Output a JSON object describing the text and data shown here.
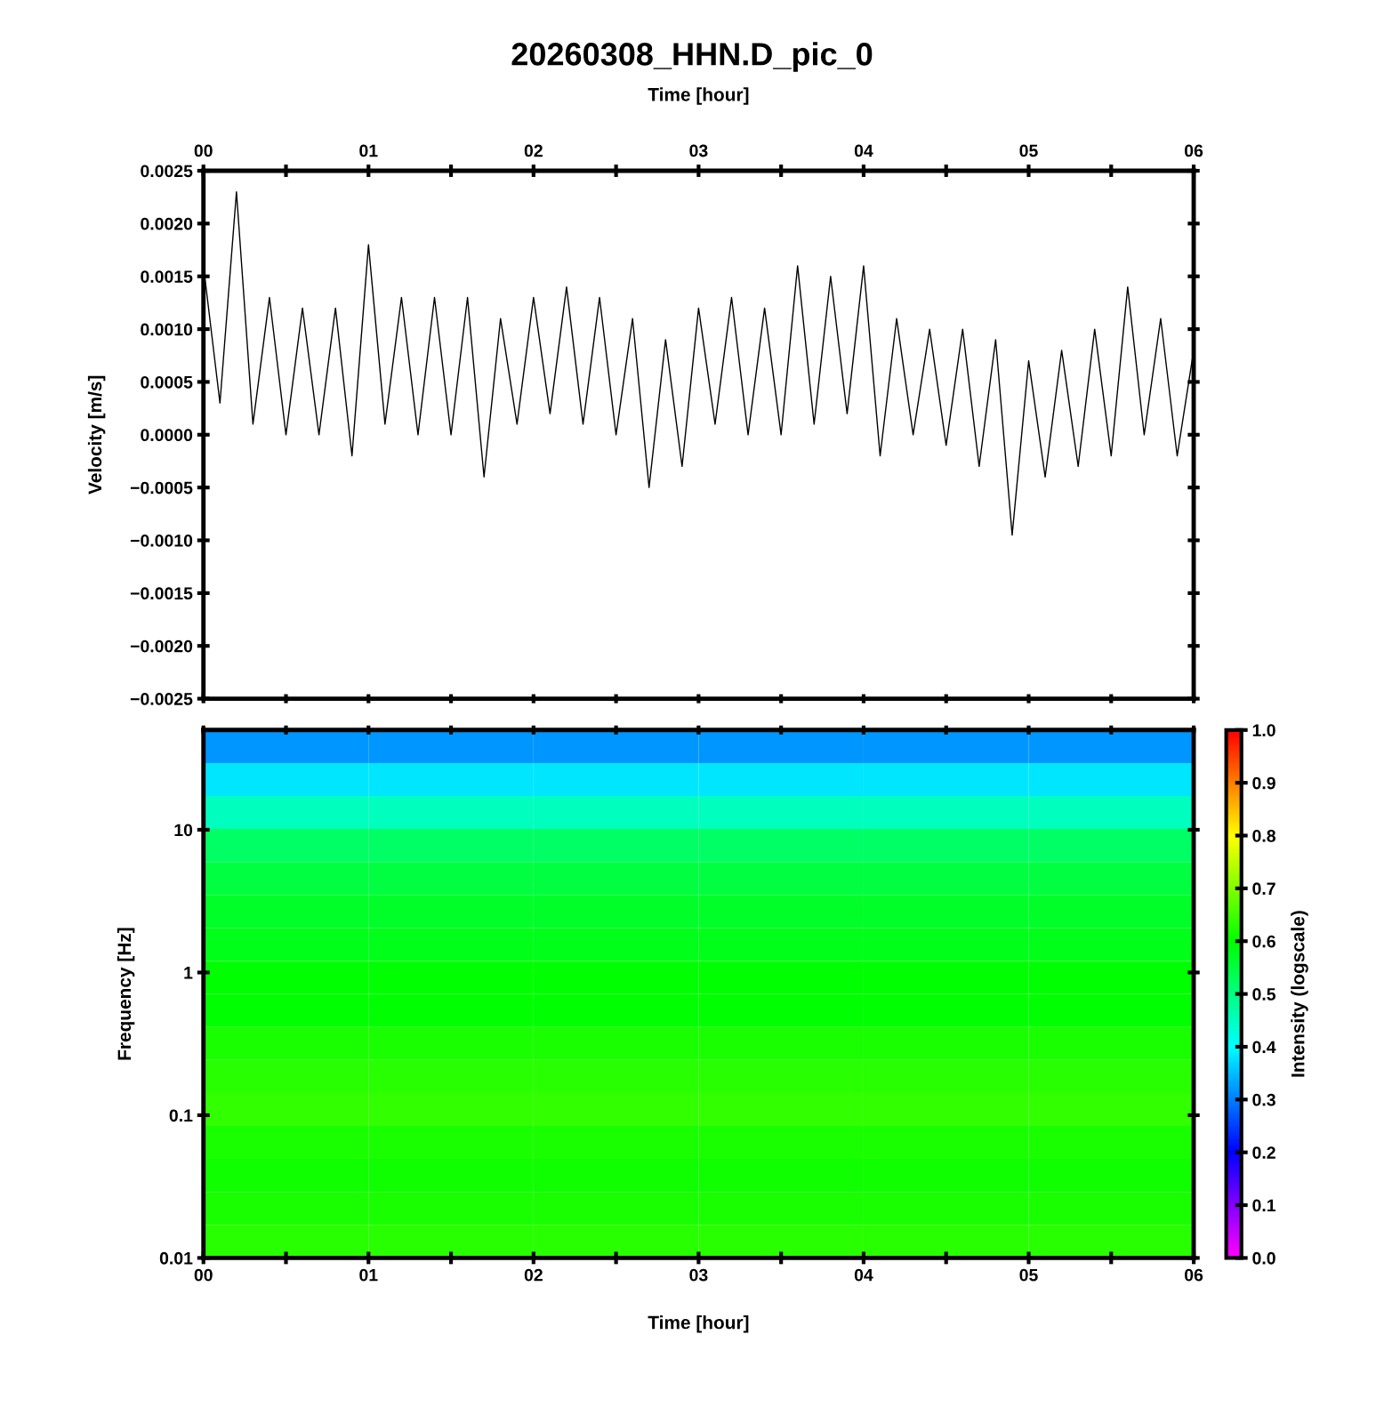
{
  "chart_data": [
    {
      "type": "line",
      "title": "20260308_HHN.D_pic_0",
      "xlabel": "Time [hour]",
      "ylabel": "Velocity [m/s]",
      "xlim": [
        0,
        6
      ],
      "xticks": [
        {
          "value": 0,
          "label": "00"
        },
        {
          "value": 0.5,
          "label": null
        },
        {
          "value": 1,
          "label": "01"
        },
        {
          "value": 1.5,
          "label": null
        },
        {
          "value": 2,
          "label": "02"
        },
        {
          "value": 2.5,
          "label": null
        },
        {
          "value": 3,
          "label": "03"
        },
        {
          "value": 3.5,
          "label": null
        },
        {
          "value": 4,
          "label": "04"
        },
        {
          "value": 4.5,
          "label": null
        },
        {
          "value": 5,
          "label": "05"
        },
        {
          "value": 5.5,
          "label": null
        },
        {
          "value": 6,
          "label": "06"
        }
      ],
      "ylim": [
        -0.0025,
        0.0025
      ],
      "yticks": [
        {
          "value": -0.0025,
          "label": "−0.0025"
        },
        {
          "value": -0.002,
          "label": "−0.0020"
        },
        {
          "value": -0.0015,
          "label": "−0.0015"
        },
        {
          "value": -0.001,
          "label": "−0.0010"
        },
        {
          "value": -0.0005,
          "label": "−0.0005"
        },
        {
          "value": 0,
          "label": "0.0000"
        },
        {
          "value": 0.0005,
          "label": "0.0005"
        },
        {
          "value": 0.001,
          "label": "0.0010"
        },
        {
          "value": 0.0015,
          "label": "0.0015"
        },
        {
          "value": 0.002,
          "label": "0.0020"
        },
        {
          "value": 0.0025,
          "label": "0.0025"
        }
      ],
      "series": [
        {
          "color": "#000000",
          "x": [
            0,
            0.1,
            0.2,
            0.3,
            0.4,
            0.5,
            0.6,
            0.7,
            0.8,
            0.9,
            1,
            1.1,
            1.2,
            1.3,
            1.4,
            1.5,
            1.6,
            1.7,
            1.8,
            1.9,
            2,
            2.1,
            2.2,
            2.3,
            2.4,
            2.5,
            2.6,
            2.7,
            2.8,
            2.9,
            3,
            3.1,
            3.2,
            3.3,
            3.4,
            3.5,
            3.6,
            3.7,
            3.8,
            3.9,
            4,
            4.1,
            4.2,
            4.3,
            4.4,
            4.5,
            4.6,
            4.7,
            4.8,
            4.9,
            5,
            5.1,
            5.2,
            5.3,
            5.4,
            5.5,
            5.6,
            5.7,
            5.8,
            5.9,
            6
          ],
          "values": [
            0.0016,
            0.0003,
            0.0023,
            0.0001,
            0.0013,
            0.0,
            0.0012,
            0.0,
            0.0012,
            -0.0002,
            0.0018,
            0.0001,
            0.0013,
            0.0,
            0.0013,
            0.0,
            0.0013,
            -0.0004,
            0.0011,
            0.0001,
            0.0013,
            0.0002,
            0.0014,
            0.0001,
            0.0013,
            0.0,
            0.0011,
            -0.0005,
            0.0009,
            -0.0003,
            0.0012,
            0.0001,
            0.0013,
            0.0,
            0.0012,
            0.0,
            0.0016,
            0.0001,
            0.0015,
            0.0002,
            0.0016,
            -0.0002,
            0.0011,
            0.0,
            0.001,
            -0.0001,
            0.001,
            -0.0003,
            0.0009,
            -0.00095,
            0.0007,
            -0.0004,
            0.0008,
            -0.0003,
            0.001,
            -0.0002,
            0.0014,
            0.0,
            0.0011,
            -0.0002,
            0.0008
          ]
        }
      ]
    },
    {
      "type": "heatmap",
      "xlabel": "Time [hour]",
      "ylabel": "Frequency [Hz]",
      "clabel": "Intensity (logscale)",
      "log": "y",
      "xlim": [
        0,
        6
      ],
      "xticks": [
        {
          "value": 0,
          "label": "00"
        },
        {
          "value": 0.5,
          "label": null
        },
        {
          "value": 1,
          "label": "01"
        },
        {
          "value": 1.5,
          "label": null
        },
        {
          "value": 2,
          "label": "02"
        },
        {
          "value": 2.5,
          "label": null
        },
        {
          "value": 3,
          "label": "03"
        },
        {
          "value": 3.5,
          "label": null
        },
        {
          "value": 4,
          "label": "04"
        },
        {
          "value": 4.5,
          "label": null
        },
        {
          "value": 5,
          "label": "05"
        },
        {
          "value": 5.5,
          "label": null
        },
        {
          "value": 6,
          "label": "06"
        }
      ],
      "ylim": [
        0.01,
        50
      ],
      "yticks": [
        0.01,
        0.1,
        1,
        10
      ],
      "clim": [
        0,
        1
      ],
      "cticks": [
        {
          "value": 0,
          "label": "0.0"
        },
        {
          "value": 0.1,
          "label": "0.1"
        },
        {
          "value": 0.2,
          "label": "0.2"
        },
        {
          "value": 0.3,
          "label": "0.3"
        },
        {
          "value": 0.4,
          "label": "0.4"
        },
        {
          "value": 0.5,
          "label": "0.5"
        },
        {
          "value": 0.6,
          "label": "0.6"
        },
        {
          "value": 0.7,
          "label": "0.7"
        },
        {
          "value": 0.8,
          "label": "0.8"
        },
        {
          "value": 0.9,
          "label": "0.9"
        },
        {
          "value": 1,
          "label": "1.0"
        }
      ],
      "cells": [
        [
          0.32,
          0.32,
          0.32,
          0.32,
          0.32,
          0.32
        ],
        [
          0.38,
          0.38,
          0.38,
          0.38,
          0.38,
          0.38
        ],
        [
          0.45,
          0.45,
          0.45,
          0.45,
          0.45,
          0.45
        ],
        [
          0.52,
          0.52,
          0.52,
          0.52,
          0.52,
          0.52
        ],
        [
          0.55,
          0.55,
          0.55,
          0.55,
          0.55,
          0.55
        ],
        [
          0.57,
          0.57,
          0.57,
          0.57,
          0.57,
          0.57
        ],
        [
          0.58,
          0.58,
          0.58,
          0.58,
          0.58,
          0.58
        ],
        [
          0.6,
          0.6,
          0.6,
          0.6,
          0.6,
          0.6
        ],
        [
          0.6,
          0.6,
          0.6,
          0.6,
          0.6,
          0.6
        ],
        [
          0.62,
          0.62,
          0.62,
          0.62,
          0.62,
          0.62
        ],
        [
          0.63,
          0.63,
          0.63,
          0.63,
          0.63,
          0.63
        ],
        [
          0.64,
          0.64,
          0.64,
          0.64,
          0.64,
          0.64
        ],
        [
          0.62,
          0.62,
          0.62,
          0.62,
          0.62,
          0.62
        ],
        [
          0.61,
          0.61,
          0.61,
          0.61,
          0.61,
          0.61
        ],
        [
          0.62,
          0.62,
          0.62,
          0.62,
          0.62,
          0.62
        ],
        [
          0.63,
          0.63,
          0.63,
          0.63,
          0.63,
          0.63
        ]
      ]
    }
  ]
}
